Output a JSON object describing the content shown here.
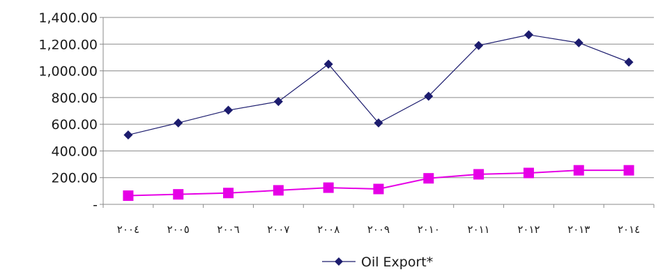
{
  "chart_data": {
    "type": "line",
    "categories": [
      "٢٠٠٤",
      "٢٠٠٥",
      "٢٠٠٦",
      "٢٠٠٧",
      "٢٠٠٨",
      "٢٠٠٩",
      "٢٠١٠",
      "٢٠١١",
      "٢٠١٢",
      "٢٠١٣",
      "٢٠١٤"
    ],
    "series": [
      {
        "name": "Oil Export*",
        "color": "#1c1c6e",
        "marker": "diamond",
        "values": [
          520,
          610,
          705,
          770,
          1050,
          610,
          810,
          1190,
          1270,
          1210,
          1065
        ]
      },
      {
        "name": "",
        "color": "#e600e6",
        "marker": "square",
        "values": [
          65,
          75,
          85,
          105,
          125,
          115,
          195,
          225,
          235,
          255,
          255
        ]
      }
    ],
    "yticks": [
      "-",
      "200.00",
      "400.00",
      "600.00",
      "800.00",
      "1,000.00",
      "1,200.00",
      "1,400.00"
    ],
    "ylim": [
      0,
      1400
    ],
    "grid": "horizontal",
    "legend_position": "bottom-center",
    "title": "",
    "xlabel": "",
    "ylabel": ""
  }
}
